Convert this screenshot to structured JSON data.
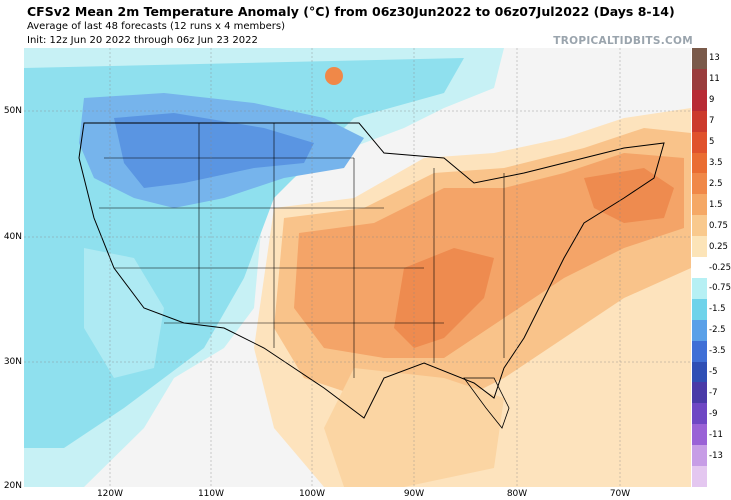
{
  "header": {
    "title": "CFSv2 Mean 2m Temperature Anomaly (°C) from 06z30Jun2022 to 06z07Jul2022 (Days 8-14)",
    "subtitle": "Average of last 48 forecasts (12 runs x 4 members)",
    "init": "Init: 12z Jun 20 2022 through 06z Jun 23 2022",
    "brand": "TROPICALTIDBITS.COM"
  },
  "map": {
    "lat_labels": [
      "50N",
      "40N",
      "30N",
      "20N"
    ],
    "lon_labels": [
      "120W",
      "110W",
      "100W",
      "90W",
      "80W",
      "70W"
    ]
  },
  "colorbar": {
    "labels": [
      "13",
      "11",
      "9",
      "7",
      "5",
      "3.5",
      "2.5",
      "1.5",
      "0.75",
      "0.25",
      "-0.25",
      "-0.75",
      "-1.5",
      "-2.5",
      "-3.5",
      "-5",
      "-7",
      "-9",
      "-11",
      "-13"
    ],
    "colors": [
      "#7a5a4a",
      "#9a3d3d",
      "#b82a34",
      "#cc3a2c",
      "#e0522c",
      "#ea6d32",
      "#f08848",
      "#f5a865",
      "#f9c98d",
      "#fce4b8",
      "#ffffff",
      "#b6f0f4",
      "#6fd3ea",
      "#5aa0e8",
      "#3f6fd6",
      "#2f4fb5",
      "#4a3aa8",
      "#6f47c4",
      "#9a62d6",
      "#c79de6",
      "#e4c7f0"
    ]
  }
}
